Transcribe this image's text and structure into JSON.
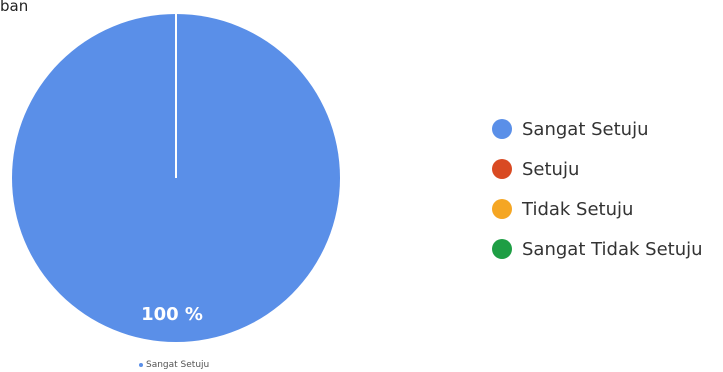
{
  "header": {
    "fragment": "ban"
  },
  "chart_data": {
    "type": "pie",
    "title": "",
    "slices": [
      {
        "label": "Sangat Setuju",
        "value": 100,
        "color": "#5a8fe8"
      },
      {
        "label": "Setuju",
        "value": 0,
        "color": "#d94a22"
      },
      {
        "label": "Tidak Setuju",
        "value": 0,
        "color": "#f5a623"
      },
      {
        "label": "Sangat Tidak Setuju",
        "value": 0,
        "color": "#1e9e44"
      }
    ],
    "data_labels": [
      "100 %"
    ],
    "legend_position": "right",
    "bottom_legend": {
      "label": "Sangat Setuju",
      "color": "#5a8fe8"
    }
  }
}
